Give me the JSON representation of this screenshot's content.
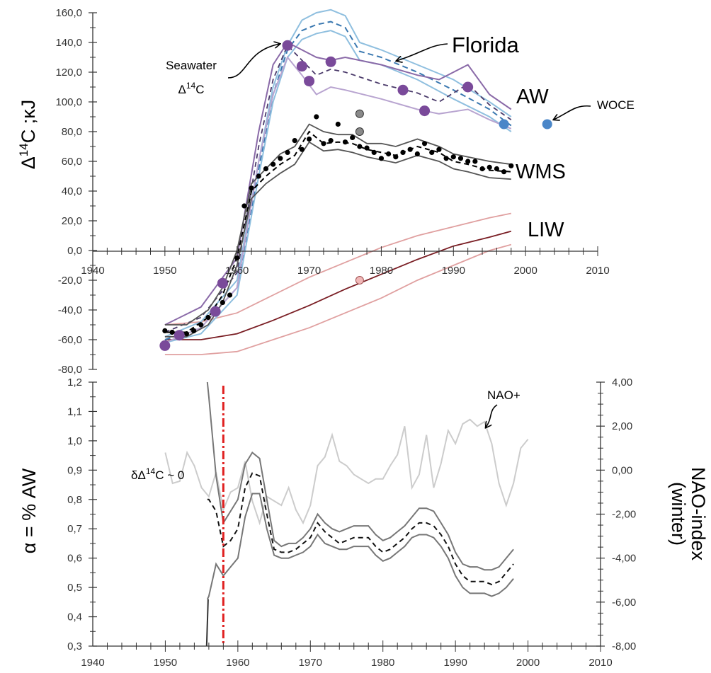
{
  "chart_data": [
    {
      "type": "line",
      "ylabel_prefix": "Δ",
      "ylabel_sup": "14",
      "ylabel_suffix": "C ;κJ",
      "x_ticks": [
        "1940",
        "1950",
        "1960",
        "1970",
        "1980",
        "1990",
        "2000",
        "2010"
      ],
      "y_ticks": [
        "160,0",
        "140,0",
        "120,0",
        "100,0",
        "80,0",
        "60,0",
        "40,0",
        "20,0",
        "0,0",
        "-20,0",
        "-40,0",
        "-60,0",
        "-80,0"
      ],
      "xlim": [
        1940,
        2010
      ],
      "ylim": [
        -80,
        160
      ],
      "colors": {
        "florida_band": "#8fbfdf",
        "florida_mean": "#3a78b0",
        "aw_band": "#8a6aa8",
        "aw_band_light": "#b8a4d0",
        "aw_points": "#7a4a9a",
        "wms": "#555555",
        "liw_mean": "#7a1e24",
        "liw_band": "#e0a0a0",
        "woce": "#4a86c8"
      },
      "series": [
        {
          "name": "Florida",
          "x": [
            1950,
            1955,
            1960,
            1963,
            1965,
            1967,
            1969,
            1971,
            1973,
            1975,
            1977,
            1980,
            1985,
            1990,
            1995,
            1998
          ],
          "upper": [
            -58,
            -48,
            -20,
            60,
            110,
            138,
            155,
            160,
            162,
            158,
            140,
            135,
            125,
            115,
            100,
            90
          ],
          "mean": [
            -60,
            -52,
            -25,
            55,
            105,
            135,
            148,
            152,
            154,
            150,
            134,
            130,
            120,
            108,
            95,
            84
          ],
          "lower": [
            -62,
            -56,
            -30,
            50,
            100,
            130,
            142,
            146,
            148,
            144,
            128,
            125,
            115,
            102,
            90,
            80
          ]
        },
        {
          "name": "AW",
          "x": [
            1950,
            1955,
            1960,
            1963,
            1965,
            1967,
            1969,
            1971,
            1973,
            1975,
            1980,
            1985,
            1988,
            1992,
            1995,
            1998
          ],
          "upper": [
            -50,
            -38,
            -5,
            80,
            125,
            140,
            135,
            130,
            128,
            130,
            125,
            118,
            115,
            125,
            105,
            95
          ],
          "mean": [
            -55,
            -45,
            -15,
            70,
            115,
            138,
            128,
            118,
            122,
            120,
            112,
            106,
            100,
            112,
            98,
            88
          ],
          "lower": [
            -62,
            -52,
            -25,
            60,
            105,
            130,
            118,
            105,
            110,
            108,
            102,
            95,
            92,
            95,
            88,
            82
          ],
          "points_x": [
            1950,
            1952,
            1957,
            1958,
            1967,
            1969,
            1970,
            1973,
            1983,
            1986,
            1992
          ],
          "points_y": [
            -64,
            -57,
            -41,
            -22,
            138,
            124,
            114,
            127,
            108,
            94,
            110
          ]
        },
        {
          "name": "WMS",
          "x": [
            1950,
            1953,
            1956,
            1958,
            1960,
            1962,
            1964,
            1966,
            1968,
            1970,
            1972,
            1974,
            1976,
            1978,
            1980,
            1982,
            1985,
            1988,
            1990,
            1992,
            1995,
            1998
          ],
          "upper": [
            -50,
            -50,
            -40,
            -25,
            0,
            45,
            55,
            65,
            70,
            85,
            80,
            78,
            78,
            72,
            72,
            70,
            75,
            70,
            65,
            63,
            60,
            58
          ],
          "mean": [
            -55,
            -55,
            -45,
            -30,
            -5,
            40,
            50,
            58,
            64,
            80,
            72,
            73,
            72,
            68,
            66,
            64,
            70,
            66,
            60,
            58,
            54,
            53
          ],
          "lower": [
            -58,
            -58,
            -50,
            -35,
            -10,
            35,
            45,
            52,
            58,
            73,
            67,
            68,
            66,
            63,
            61,
            59,
            64,
            60,
            55,
            53,
            49,
            48
          ],
          "points_x": [
            1950,
            1951,
            1952,
            1953,
            1954,
            1955,
            1956,
            1957,
            1958,
            1959,
            1960,
            1961,
            1962,
            1963,
            1964,
            1965,
            1966,
            1967,
            1968,
            1969,
            1970,
            1971,
            1972,
            1973,
            1974,
            1975,
            1976,
            1977,
            1978,
            1979,
            1980,
            1981,
            1982,
            1983,
            1984,
            1985,
            1986,
            1987,
            1988,
            1989,
            1990,
            1991,
            1992,
            1993,
            1994,
            1995,
            1996,
            1997,
            1998
          ],
          "points_y": [
            -54,
            -55,
            -57,
            -56,
            -54,
            -50,
            -45,
            -40,
            -35,
            -30,
            -5,
            30,
            42,
            50,
            55,
            58,
            62,
            66,
            74,
            68,
            75,
            90,
            72,
            74,
            85,
            73,
            76,
            70,
            69,
            66,
            62,
            65,
            63,
            66,
            68,
            65,
            72,
            66,
            68,
            62,
            63,
            62,
            60,
            60,
            55,
            56,
            55,
            53,
            57
          ],
          "grey_points_x": [
            1977,
            1977
          ],
          "grey_points_y": [
            92,
            80
          ]
        },
        {
          "name": "LIW",
          "x": [
            1950,
            1955,
            1960,
            1965,
            1970,
            1975,
            1980,
            1985,
            1990,
            1995,
            1998
          ],
          "upper": [
            -50,
            -48,
            -42,
            -30,
            -18,
            -8,
            2,
            10,
            16,
            22,
            25
          ],
          "mean": [
            -60,
            -60,
            -56,
            -47,
            -37,
            -26,
            -16,
            -6,
            3,
            9,
            13
          ],
          "lower": [
            -70,
            -70,
            -68,
            -60,
            -52,
            -42,
            -32,
            -20,
            -10,
            0,
            4
          ],
          "points_x": [
            1977
          ],
          "points_y": [
            -20
          ]
        },
        {
          "name": "WOCE",
          "points_x": [
            1997,
            2003
          ],
          "points_y": [
            85,
            85
          ]
        }
      ],
      "annotations": {
        "seawater_l1": "Seawater",
        "seawater_pre": "Δ",
        "seawater_sup": "14",
        "seawater_post": "C",
        "florida": "Florida",
        "aw": "AW",
        "woce": "WOCE",
        "wms": "WMS",
        "liw": "LIW"
      }
    },
    {
      "type": "line",
      "ylabel": "α = % AW",
      "y2label_l1": "NAO-index",
      "y2label_l2": "(winter)",
      "x_ticks": [
        "1940",
        "1950",
        "1960",
        "1970",
        "1980",
        "1990",
        "2000",
        "2010"
      ],
      "y_ticks": [
        "1,2",
        "1,1",
        "1,0",
        "0,9",
        "0,8",
        "0,7",
        "0,6",
        "0,5",
        "0,4",
        "0,3"
      ],
      "y2_ticks": [
        "4,00",
        "2,00",
        "0,00",
        "-2,00",
        "-4,00",
        "-6,00",
        "-8,00"
      ],
      "xlim": [
        1940,
        2010
      ],
      "ylim": [
        0.3,
        1.2
      ],
      "y2lim": [
        -8,
        4
      ],
      "colors": {
        "alpha_band": "#777777",
        "alpha_mean": "#111111",
        "nao": "#cccccc",
        "vline": "#e02020",
        "y2label": "#c0c0c0"
      },
      "series": [
        {
          "name": "α",
          "x": [
            1955.8,
            1956,
            1957,
            1958,
            1959,
            1960,
            1961,
            1962,
            1963,
            1964,
            1965,
            1966,
            1967,
            1968,
            1969,
            1970,
            1971,
            1972,
            1973,
            1974,
            1975,
            1976,
            1977,
            1978,
            1979,
            1980,
            1981,
            1982,
            1983,
            1984,
            1985,
            1986,
            1987,
            1988,
            1989,
            1990,
            1991,
            1992,
            1993,
            1994,
            1995,
            1996,
            1997,
            1998
          ],
          "upper": [
            1.2,
            1.15,
            0.88,
            0.72,
            0.76,
            0.8,
            0.92,
            0.96,
            0.94,
            0.8,
            0.66,
            0.64,
            0.65,
            0.65,
            0.67,
            0.7,
            0.75,
            0.72,
            0.7,
            0.69,
            0.7,
            0.71,
            0.71,
            0.71,
            0.68,
            0.66,
            0.67,
            0.69,
            0.71,
            0.74,
            0.77,
            0.77,
            0.76,
            0.72,
            0.68,
            0.62,
            0.58,
            0.57,
            0.57,
            0.56,
            0.56,
            0.57,
            0.6,
            0.63
          ],
          "mean": [
            0.8,
            0.8,
            0.76,
            0.64,
            0.66,
            0.7,
            0.84,
            0.89,
            0.88,
            0.75,
            0.63,
            0.62,
            0.62,
            0.63,
            0.65,
            0.67,
            0.72,
            0.69,
            0.67,
            0.65,
            0.66,
            0.67,
            0.67,
            0.67,
            0.64,
            0.62,
            0.63,
            0.65,
            0.67,
            0.7,
            0.72,
            0.72,
            0.71,
            0.68,
            0.64,
            0.58,
            0.54,
            0.52,
            0.52,
            0.52,
            0.51,
            0.52,
            0.55,
            0.58
          ],
          "lower": [
            0.46,
            0.47,
            0.58,
            0.54,
            0.57,
            0.6,
            0.74,
            0.82,
            0.82,
            0.7,
            0.61,
            0.6,
            0.6,
            0.61,
            0.62,
            0.64,
            0.68,
            0.65,
            0.64,
            0.63,
            0.63,
            0.64,
            0.64,
            0.64,
            0.61,
            0.59,
            0.6,
            0.62,
            0.64,
            0.67,
            0.68,
            0.68,
            0.67,
            0.64,
            0.6,
            0.54,
            0.5,
            0.48,
            0.48,
            0.48,
            0.47,
            0.48,
            0.5,
            0.53
          ],
          "spike_x": [
            1955.7,
            1955.9
          ],
          "spike_y": [
            0.3,
            0.46
          ]
        },
        {
          "name": "NAO",
          "x": [
            1950,
            1951,
            1952,
            1953,
            1954,
            1955,
            1956,
            1957,
            1958,
            1959,
            1960,
            1961,
            1962,
            1963,
            1964,
            1965,
            1966,
            1967,
            1968,
            1969,
            1970,
            1971,
            1972,
            1973,
            1974,
            1975,
            1976,
            1977,
            1978,
            1979,
            1980,
            1981,
            1982,
            1983,
            1984,
            1985,
            1986,
            1987,
            1988,
            1989,
            1990,
            1991,
            1992,
            1993,
            1994,
            1995,
            1996,
            1997,
            1998,
            1999,
            2000
          ],
          "values": [
            0.8,
            -0.6,
            -0.5,
            0.8,
            0.2,
            -0.8,
            -1.2,
            -0.1,
            -1.8,
            -1.0,
            -0.8,
            0.4,
            -1.4,
            -2.4,
            -1.2,
            -1.4,
            -1.6,
            -0.8,
            -1.8,
            -2.4,
            -1.6,
            0.2,
            0.6,
            1.6,
            0.4,
            0.2,
            -0.2,
            -0.4,
            -0.6,
            -0.4,
            -0.4,
            0.2,
            0.7,
            2.0,
            -0.8,
            -0.2,
            1.6,
            -0.8,
            0.3,
            1.8,
            1.2,
            2.1,
            2.3,
            2.0,
            2.2,
            1.2,
            -0.6,
            -1.6,
            -0.6,
            1.0,
            1.4
          ]
        }
      ],
      "vline_x": 1958,
      "annotations": {
        "delta_pre": "δΔ",
        "delta_sup": "14",
        "delta_post": "C ~ 0",
        "nao_plus": "NAO+"
      }
    }
  ]
}
